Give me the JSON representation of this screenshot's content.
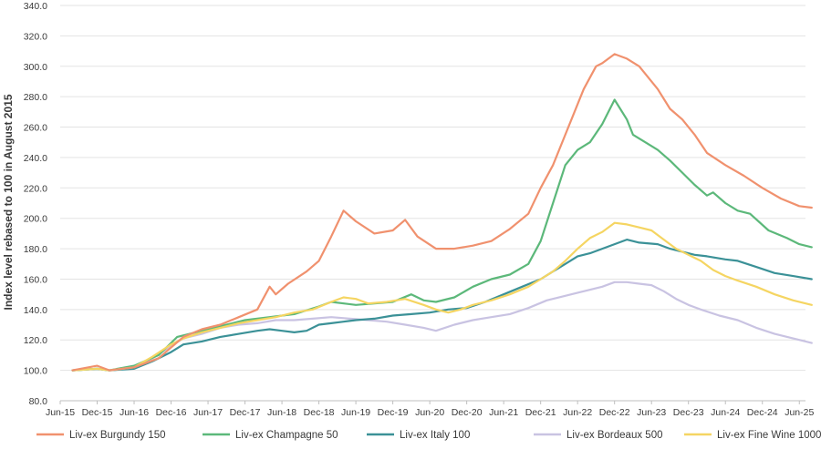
{
  "chart_data": {
    "type": "line",
    "title": "",
    "xlabel": "",
    "ylabel": "Index level rebased to 100 in August 2015",
    "ylim": [
      80,
      340
    ],
    "yticks": [
      "80.0",
      "100.0",
      "120.0",
      "140.0",
      "160.0",
      "180.0",
      "200.0",
      "220.0",
      "240.0",
      "260.0",
      "280.0",
      "300.0",
      "320.0",
      "340.0"
    ],
    "xticks": [
      "Jun-15",
      "Dec-15",
      "Jun-16",
      "Dec-16",
      "Jun-17",
      "Dec-17",
      "Jun-18",
      "Dec-18",
      "Jun-19",
      "Dec-19",
      "Jun-20",
      "Dec-20",
      "Jun-21",
      "Dec-21",
      "Jun-22",
      "Dec-22",
      "Jun-23",
      "Dec-23",
      "Jun-24",
      "Dec-24",
      "Jun-25"
    ],
    "x_start": "Aug-15",
    "x_end": "Jul-25",
    "grid": "horizontal",
    "legend_position": "bottom",
    "series": [
      {
        "name": "Liv-ex Burgundy 150",
        "color": "#F0916E",
        "values": [
          [
            0,
            100
          ],
          [
            4,
            103
          ],
          [
            6,
            100
          ],
          [
            10,
            102
          ],
          [
            14,
            108
          ],
          [
            16,
            115
          ],
          [
            18,
            122
          ],
          [
            21,
            127
          ],
          [
            24,
            130
          ],
          [
            27,
            135
          ],
          [
            30,
            140
          ],
          [
            32,
            155
          ],
          [
            33,
            150
          ],
          [
            35,
            157
          ],
          [
            38,
            165
          ],
          [
            40,
            172
          ],
          [
            42,
            188
          ],
          [
            44,
            205
          ],
          [
            46,
            198
          ],
          [
            49,
            190
          ],
          [
            52,
            192
          ],
          [
            54,
            199
          ],
          [
            56,
            188
          ],
          [
            59,
            180
          ],
          [
            62,
            180
          ],
          [
            65,
            182
          ],
          [
            68,
            185
          ],
          [
            71,
            193
          ],
          [
            74,
            203
          ],
          [
            76,
            220
          ],
          [
            78,
            235
          ],
          [
            80,
            255
          ],
          [
            83,
            285
          ],
          [
            85,
            300
          ],
          [
            86,
            302
          ],
          [
            88,
            308
          ],
          [
            90,
            305
          ],
          [
            92,
            300
          ],
          [
            95,
            285
          ],
          [
            97,
            272
          ],
          [
            99,
            265
          ],
          [
            101,
            255
          ],
          [
            103,
            243
          ],
          [
            106,
            235
          ],
          [
            109,
            228
          ],
          [
            112,
            220
          ],
          [
            115,
            213
          ],
          [
            118,
            208
          ],
          [
            120,
            207
          ]
        ]
      },
      {
        "name": "Liv-ex Champagne 50",
        "color": "#5CB87A",
        "values": [
          [
            0,
            100
          ],
          [
            4,
            101
          ],
          [
            6,
            100
          ],
          [
            10,
            103
          ],
          [
            14,
            110
          ],
          [
            17,
            122
          ],
          [
            20,
            125
          ],
          [
            24,
            129
          ],
          [
            28,
            133
          ],
          [
            32,
            135
          ],
          [
            36,
            137
          ],
          [
            40,
            142
          ],
          [
            42,
            145
          ],
          [
            46,
            143
          ],
          [
            49,
            144
          ],
          [
            52,
            145
          ],
          [
            55,
            150
          ],
          [
            57,
            146
          ],
          [
            59,
            145
          ],
          [
            62,
            148
          ],
          [
            65,
            155
          ],
          [
            68,
            160
          ],
          [
            71,
            163
          ],
          [
            74,
            170
          ],
          [
            76,
            185
          ],
          [
            78,
            210
          ],
          [
            80,
            235
          ],
          [
            82,
            245
          ],
          [
            84,
            250
          ],
          [
            86,
            262
          ],
          [
            88,
            278
          ],
          [
            90,
            265
          ],
          [
            91,
            255
          ],
          [
            93,
            250
          ],
          [
            95,
            245
          ],
          [
            97,
            238
          ],
          [
            99,
            230
          ],
          [
            101,
            222
          ],
          [
            103,
            215
          ],
          [
            104,
            217
          ],
          [
            106,
            210
          ],
          [
            108,
            205
          ],
          [
            110,
            203
          ],
          [
            113,
            192
          ],
          [
            116,
            187
          ],
          [
            118,
            183
          ],
          [
            120,
            181
          ]
        ]
      },
      {
        "name": "Liv-ex Italy 100",
        "color": "#3B9197",
        "values": [
          [
            0,
            100
          ],
          [
            4,
            101
          ],
          [
            6,
            100
          ],
          [
            10,
            101
          ],
          [
            13,
            106
          ],
          [
            16,
            112
          ],
          [
            18,
            117
          ],
          [
            21,
            119
          ],
          [
            24,
            122
          ],
          [
            27,
            124
          ],
          [
            30,
            126
          ],
          [
            32,
            127
          ],
          [
            34,
            126
          ],
          [
            36,
            125
          ],
          [
            38,
            126
          ],
          [
            40,
            130
          ],
          [
            42,
            131
          ],
          [
            44,
            132
          ],
          [
            46,
            133
          ],
          [
            49,
            134
          ],
          [
            52,
            136
          ],
          [
            55,
            137
          ],
          [
            58,
            138
          ],
          [
            61,
            140
          ],
          [
            64,
            141
          ],
          [
            67,
            145
          ],
          [
            70,
            150
          ],
          [
            73,
            155
          ],
          [
            76,
            160
          ],
          [
            78,
            165
          ],
          [
            80,
            170
          ],
          [
            82,
            175
          ],
          [
            84,
            177
          ],
          [
            86,
            180
          ],
          [
            88,
            183
          ],
          [
            90,
            186
          ],
          [
            92,
            184
          ],
          [
            95,
            183
          ],
          [
            97,
            180
          ],
          [
            99,
            178
          ],
          [
            101,
            176
          ],
          [
            103,
            175
          ],
          [
            106,
            173
          ],
          [
            108,
            172
          ],
          [
            111,
            168
          ],
          [
            114,
            164
          ],
          [
            117,
            162
          ],
          [
            120,
            160
          ]
        ]
      },
      {
        "name": "Liv-ex Bordeaux 500",
        "color": "#C9C3E2",
        "values": [
          [
            0,
            100
          ],
          [
            4,
            101
          ],
          [
            6,
            100
          ],
          [
            10,
            102
          ],
          [
            13,
            108
          ],
          [
            16,
            116
          ],
          [
            18,
            121
          ],
          [
            21,
            124
          ],
          [
            24,
            128
          ],
          [
            27,
            130
          ],
          [
            30,
            131
          ],
          [
            33,
            133
          ],
          [
            36,
            133
          ],
          [
            39,
            134
          ],
          [
            42,
            135
          ],
          [
            45,
            134
          ],
          [
            48,
            133
          ],
          [
            51,
            132
          ],
          [
            54,
            130
          ],
          [
            57,
            128
          ],
          [
            59,
            126
          ],
          [
            62,
            130
          ],
          [
            65,
            133
          ],
          [
            68,
            135
          ],
          [
            71,
            137
          ],
          [
            74,
            141
          ],
          [
            77,
            146
          ],
          [
            80,
            149
          ],
          [
            83,
            152
          ],
          [
            86,
            155
          ],
          [
            88,
            158
          ],
          [
            90,
            158
          ],
          [
            92,
            157
          ],
          [
            94,
            156
          ],
          [
            96,
            152
          ],
          [
            98,
            147
          ],
          [
            100,
            143
          ],
          [
            102,
            140
          ],
          [
            105,
            136
          ],
          [
            108,
            133
          ],
          [
            111,
            128
          ],
          [
            114,
            124
          ],
          [
            117,
            121
          ],
          [
            120,
            118
          ]
        ]
      },
      {
        "name": "Liv-ex Fine Wine 1000",
        "color": "#F5D562",
        "values": [
          [
            0,
            100
          ],
          [
            4,
            101
          ],
          [
            6,
            100
          ],
          [
            10,
            102
          ],
          [
            13,
            109
          ],
          [
            16,
            117
          ],
          [
            18,
            121
          ],
          [
            21,
            125
          ],
          [
            24,
            128
          ],
          [
            27,
            131
          ],
          [
            30,
            133
          ],
          [
            33,
            135
          ],
          [
            36,
            138
          ],
          [
            39,
            140
          ],
          [
            42,
            145
          ],
          [
            44,
            148
          ],
          [
            46,
            147
          ],
          [
            48,
            144
          ],
          [
            51,
            145
          ],
          [
            54,
            147
          ],
          [
            57,
            143
          ],
          [
            59,
            140
          ],
          [
            61,
            138
          ],
          [
            63,
            140
          ],
          [
            65,
            143
          ],
          [
            68,
            146
          ],
          [
            71,
            150
          ],
          [
            74,
            155
          ],
          [
            76,
            160
          ],
          [
            78,
            165
          ],
          [
            80,
            172
          ],
          [
            82,
            180
          ],
          [
            84,
            187
          ],
          [
            86,
            191
          ],
          [
            88,
            197
          ],
          [
            90,
            196
          ],
          [
            92,
            194
          ],
          [
            94,
            192
          ],
          [
            96,
            186
          ],
          [
            98,
            180
          ],
          [
            100,
            176
          ],
          [
            102,
            172
          ],
          [
            104,
            166
          ],
          [
            106,
            162
          ],
          [
            108,
            159
          ],
          [
            111,
            155
          ],
          [
            114,
            150
          ],
          [
            117,
            146
          ],
          [
            120,
            143
          ]
        ]
      }
    ]
  }
}
